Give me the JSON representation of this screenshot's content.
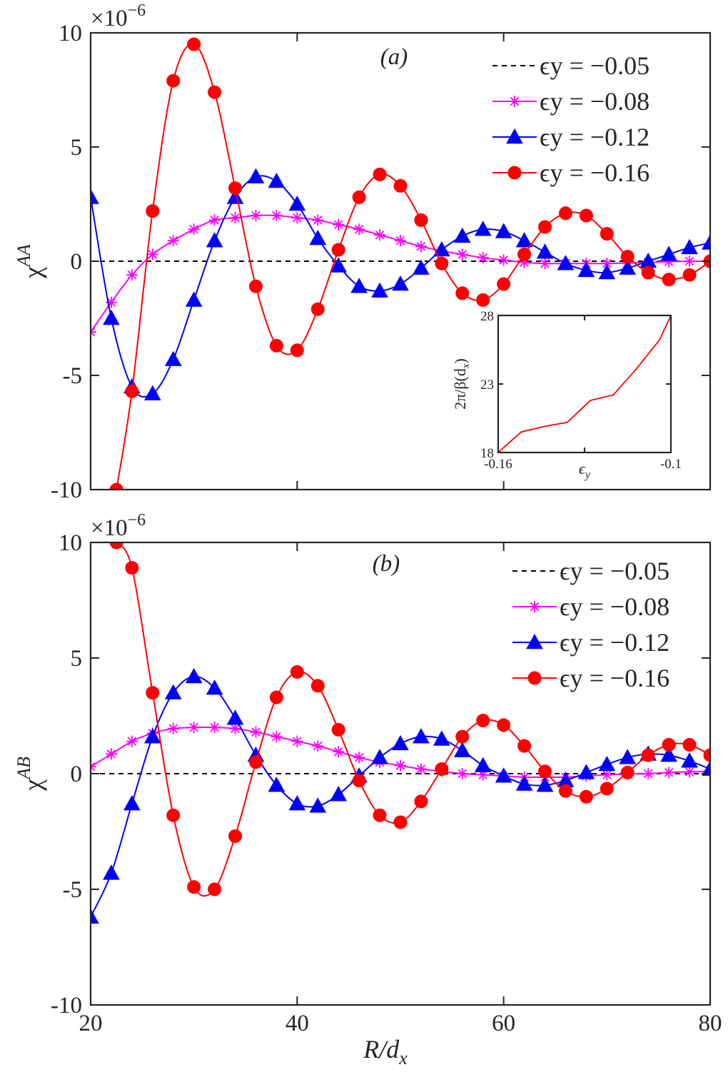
{
  "chart_data": [
    {
      "type": "line",
      "panel_label": "(a)",
      "ylabel": "χ",
      "ylabel_sup": "AA",
      "xlabel": "",
      "y_exponent": "×10",
      "y_exponent_power": "−6",
      "xlim": [
        20,
        80
      ],
      "ylim": [
        -10,
        10
      ],
      "xticks": [
        20,
        40,
        60,
        80
      ],
      "xtick_labels": [
        "",
        "",
        "",
        ""
      ],
      "yticks": [
        -10,
        -5,
        0,
        5,
        10
      ],
      "ytick_labels": [
        "-10",
        "-5",
        "0",
        "5",
        "10"
      ],
      "legend_position": "top-right",
      "series": [
        {
          "name": "ϵy = −0.05",
          "color": "#000000",
          "style": "dashed",
          "marker": "none",
          "x": [
            20,
            80
          ],
          "y": [
            0,
            0
          ]
        },
        {
          "name": "ϵy = −0.08",
          "color": "#ff00ff",
          "style": "solid",
          "marker": "star",
          "x": [
            20,
            22,
            24,
            26,
            28,
            30,
            32,
            34,
            36,
            38,
            40,
            42,
            44,
            46,
            48,
            50,
            52,
            54,
            56,
            58,
            60,
            62,
            64,
            66,
            68,
            70,
            72,
            74,
            76,
            78,
            80
          ],
          "y": [
            -3.1,
            -1.8,
            -0.6,
            0.3,
            0.9,
            1.4,
            1.8,
            1.9,
            2.0,
            2.0,
            1.9,
            1.8,
            1.6,
            1.4,
            1.15,
            0.9,
            0.65,
            0.45,
            0.3,
            0.15,
            0.05,
            -0.05,
            -0.1,
            -0.1,
            -0.1,
            -0.1,
            -0.08,
            -0.05,
            -0.02,
            0.0,
            0.0
          ]
        },
        {
          "name": "ϵy = −0.12",
          "color": "#0000ff",
          "style": "solid",
          "marker": "triangle",
          "x": [
            20,
            22,
            24,
            26,
            28,
            30,
            32,
            34,
            36,
            38,
            40,
            42,
            44,
            46,
            48,
            50,
            52,
            54,
            56,
            58,
            60,
            62,
            64,
            66,
            68,
            70,
            72,
            74,
            76,
            78,
            80
          ],
          "y": [
            2.8,
            -2.5,
            -5.5,
            -5.8,
            -4.3,
            -1.7,
            0.9,
            2.8,
            3.7,
            3.5,
            2.5,
            1.0,
            -0.2,
            -1.1,
            -1.3,
            -1.0,
            -0.3,
            0.5,
            1.1,
            1.4,
            1.3,
            0.9,
            0.4,
            -0.1,
            -0.4,
            -0.5,
            -0.3,
            0.0,
            0.3,
            0.6,
            0.8
          ]
        },
        {
          "name": "ϵy = −0.16",
          "color": "#ff0000",
          "style": "solid",
          "marker": "circle",
          "x": [
            22.5,
            24,
            26,
            28,
            30,
            32,
            34,
            36,
            38,
            40,
            42,
            44,
            46,
            48,
            50,
            52,
            54,
            56,
            58,
            60,
            62,
            64,
            66,
            68,
            70,
            72,
            74,
            76,
            78,
            80
          ],
          "y": [
            -10,
            -5.7,
            2.2,
            7.9,
            9.5,
            7.4,
            3.2,
            -1.1,
            -3.7,
            -3.9,
            -2.1,
            0.5,
            2.8,
            3.8,
            3.3,
            1.8,
            -0.1,
            -1.4,
            -1.7,
            -1.0,
            0.3,
            1.5,
            2.1,
            2.0,
            1.2,
            0.2,
            -0.5,
            -0.8,
            -0.6,
            0.0
          ]
        }
      ],
      "inset": {
        "type": "line",
        "xlabel": "ϵ",
        "xlabel_sub": "y",
        "ylabel": "2π/β(d",
        "ylabel_sub": "x",
        "ylabel_end": ")",
        "xlim": [
          -0.16,
          -0.1
        ],
        "ylim": [
          18,
          28
        ],
        "xticks": [
          -0.16,
          -0.13,
          -0.1
        ],
        "xtick_labels": [
          "-0.16",
          "",
          "-0.1"
        ],
        "yticks": [
          18,
          23,
          28
        ],
        "ytick_labels": [
          "18",
          "23",
          "28"
        ],
        "color": "#ff0000",
        "x": [
          -0.16,
          -0.152,
          -0.144,
          -0.136,
          -0.128,
          -0.12,
          -0.112,
          -0.104,
          -0.1
        ],
        "y": [
          18,
          19.5,
          19.9,
          20.2,
          21.8,
          22.2,
          24.1,
          26.2,
          28
        ]
      }
    },
    {
      "type": "line",
      "panel_label": "(b)",
      "ylabel": "χ",
      "ylabel_sup": "AB",
      "xlabel": "R/d",
      "xlabel_sub": "x",
      "y_exponent": "×10",
      "y_exponent_power": "−6",
      "xlim": [
        20,
        80
      ],
      "ylim": [
        -10,
        10
      ],
      "xticks": [
        20,
        40,
        60,
        80
      ],
      "xtick_labels": [
        "20",
        "40",
        "60",
        "80"
      ],
      "yticks": [
        -10,
        -5,
        0,
        5,
        10
      ],
      "ytick_labels": [
        "-10",
        "-5",
        "0",
        "5",
        "10"
      ],
      "legend_position": "top-right",
      "series": [
        {
          "name": "ϵy = −0.05",
          "color": "#000000",
          "style": "dashed",
          "marker": "none",
          "x": [
            20,
            80
          ],
          "y": [
            0,
            0
          ]
        },
        {
          "name": "ϵy = −0.08",
          "color": "#ff00ff",
          "style": "solid",
          "marker": "star",
          "x": [
            20,
            22,
            24,
            26,
            28,
            30,
            32,
            34,
            36,
            38,
            40,
            42,
            44,
            46,
            48,
            50,
            52,
            54,
            56,
            58,
            60,
            62,
            64,
            66,
            68,
            70,
            72,
            74,
            76,
            78,
            80
          ],
          "y": [
            0.3,
            0.85,
            1.4,
            1.75,
            1.95,
            2.0,
            2.0,
            1.95,
            1.8,
            1.6,
            1.4,
            1.2,
            0.95,
            0.7,
            0.5,
            0.35,
            0.2,
            0.1,
            0.0,
            -0.05,
            -0.1,
            -0.15,
            -0.15,
            -0.15,
            -0.1,
            -0.05,
            -0.02,
            0.0,
            0.05,
            0.08,
            0.1
          ]
        },
        {
          "name": "ϵy = −0.12",
          "color": "#0000ff",
          "style": "solid",
          "marker": "triangle",
          "x": [
            20,
            22,
            24,
            26,
            28,
            30,
            32,
            34,
            36,
            38,
            40,
            42,
            44,
            46,
            48,
            50,
            52,
            54,
            56,
            58,
            60,
            62,
            64,
            66,
            68,
            70,
            72,
            74,
            76,
            78,
            80
          ],
          "y": [
            -6.2,
            -4.3,
            -1.3,
            1.6,
            3.5,
            4.2,
            3.7,
            2.4,
            0.8,
            -0.5,
            -1.3,
            -1.4,
            -0.9,
            -0.1,
            0.7,
            1.3,
            1.6,
            1.5,
            1.0,
            0.35,
            -0.1,
            -0.45,
            -0.5,
            -0.3,
            0.05,
            0.4,
            0.7,
            0.85,
            0.8,
            0.55,
            0.2
          ]
        },
        {
          "name": "ϵy = −0.16",
          "color": "#ff0000",
          "style": "solid",
          "marker": "circle",
          "x": [
            22.5,
            24,
            26,
            28,
            30,
            32,
            34,
            36,
            38,
            40,
            42,
            44,
            46,
            48,
            50,
            52,
            54,
            56,
            58,
            60,
            62,
            64,
            66,
            68,
            70,
            72,
            74,
            76,
            78,
            80
          ],
          "y": [
            10,
            8.9,
            3.5,
            -1.8,
            -4.9,
            -5.0,
            -2.7,
            0.5,
            3.3,
            4.4,
            3.8,
            1.9,
            -0.3,
            -1.8,
            -2.1,
            -1.2,
            0.2,
            1.6,
            2.3,
            2.1,
            1.2,
            0.1,
            -0.75,
            -1.0,
            -0.65,
            0.05,
            0.8,
            1.25,
            1.25,
            0.8
          ]
        }
      ]
    }
  ]
}
